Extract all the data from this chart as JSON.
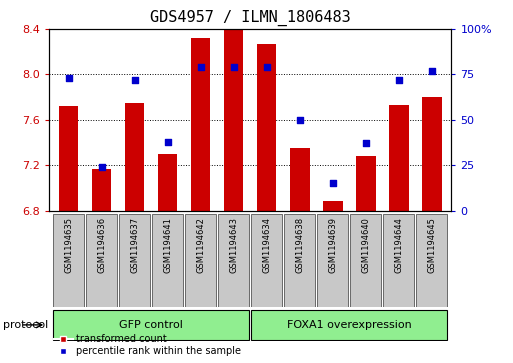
{
  "title": "GDS4957 / ILMN_1806483",
  "samples": [
    "GSM1194635",
    "GSM1194636",
    "GSM1194637",
    "GSM1194641",
    "GSM1194642",
    "GSM1194643",
    "GSM1194634",
    "GSM1194638",
    "GSM1194639",
    "GSM1194640",
    "GSM1194644",
    "GSM1194645"
  ],
  "transformed_count": [
    7.72,
    7.17,
    7.75,
    7.3,
    8.32,
    8.4,
    8.27,
    7.35,
    6.88,
    7.28,
    7.73,
    7.8
  ],
  "percentile_rank": [
    73,
    24,
    72,
    38,
    79,
    79,
    79,
    50,
    15,
    37,
    72,
    77
  ],
  "ylim_left": [
    6.8,
    8.4
  ],
  "ylim_right": [
    0,
    100
  ],
  "yticks_left": [
    6.8,
    7.2,
    7.6,
    8.0,
    8.4
  ],
  "yticks_right": [
    0,
    25,
    50,
    75,
    100
  ],
  "ytick_labels_right": [
    "0",
    "25",
    "50",
    "75",
    "100%"
  ],
  "bar_color": "#CC0000",
  "dot_color": "#0000CC",
  "bar_width": 0.6,
  "protocol_label": "protocol",
  "group1_label": "GFP control",
  "group2_label": "FOXA1 overexpression",
  "group_color": "#90EE90",
  "legend_label_red": "transformed count",
  "legend_label_blue": "percentile rank within the sample",
  "background_color": "#ffffff",
  "tick_color_left": "#CC0000",
  "tick_color_right": "#0000CC",
  "title_fontsize": 11,
  "tick_fontsize": 8,
  "sample_fontsize": 6,
  "proto_fontsize": 8,
  "legend_fontsize": 7
}
